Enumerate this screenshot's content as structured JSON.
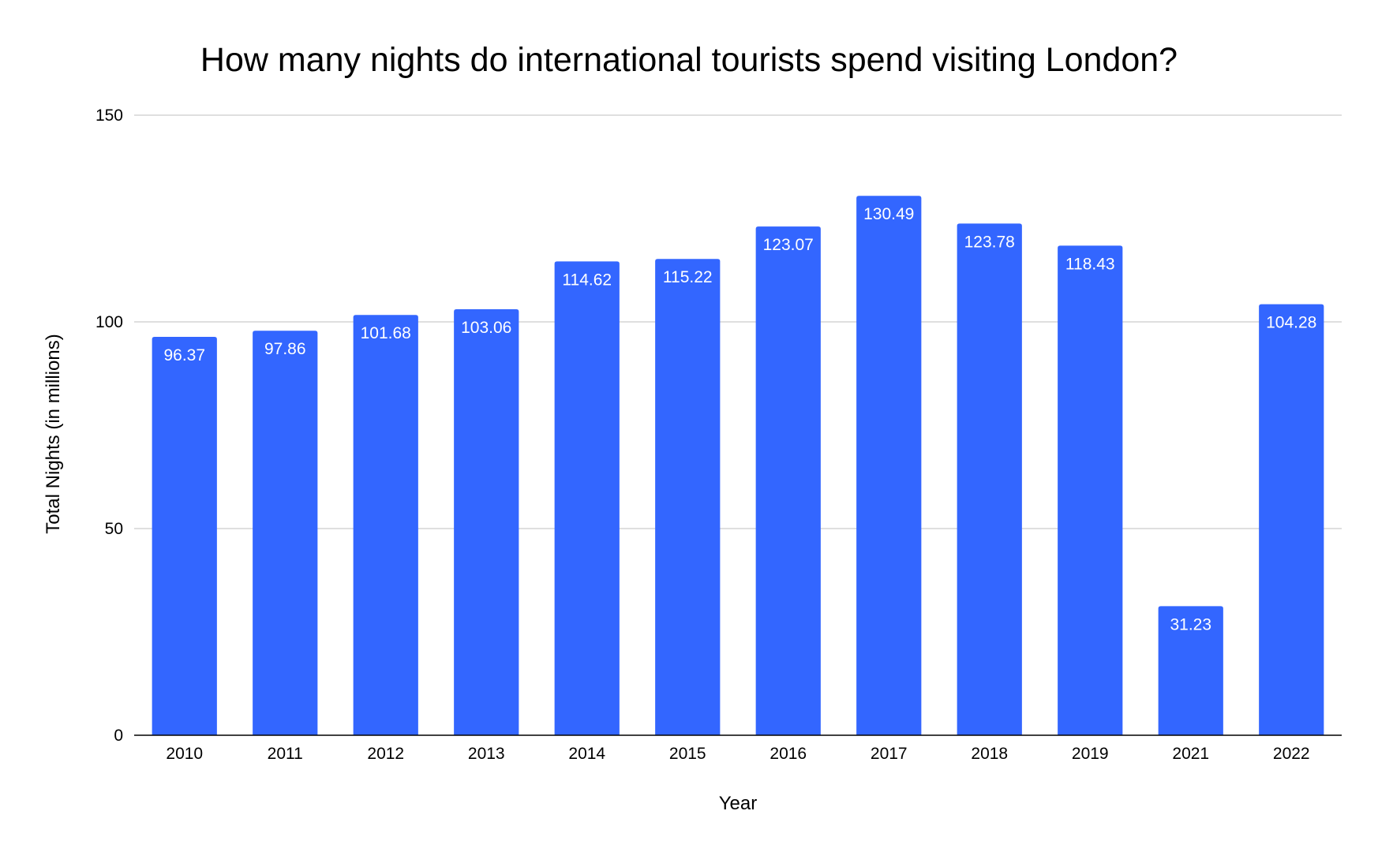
{
  "chart_data": {
    "type": "bar",
    "title": "How many nights do international tourists spend visiting London?",
    "xlabel": "Year",
    "ylabel": "Total Nights (in millions)",
    "categories": [
      "2010",
      "2011",
      "2012",
      "2013",
      "2014",
      "2015",
      "2016",
      "2017",
      "2018",
      "2019",
      "2021",
      "2022"
    ],
    "values": [
      96.37,
      97.86,
      101.68,
      103.06,
      114.62,
      115.22,
      123.07,
      130.49,
      123.78,
      118.43,
      31.23,
      104.28
    ],
    "data_labels": [
      "96.37",
      "97.86",
      "101.68",
      "103.06",
      "114.62",
      "115.22",
      "123.07",
      "130.49",
      "123.78",
      "118.43",
      "31.23",
      "104.28"
    ],
    "ylim": [
      0,
      150
    ],
    "yticks": [
      0,
      50,
      100,
      150
    ],
    "ytick_labels": [
      "0",
      "50",
      "100",
      "150"
    ],
    "grid": true,
    "legend": "none",
    "bar_color": "#3366ff"
  }
}
